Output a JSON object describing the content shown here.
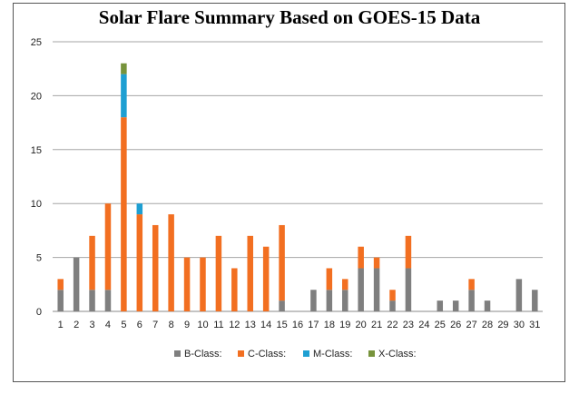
{
  "chart_data": {
    "type": "bar",
    "stacked": true,
    "title": "Solar Flare Summary Based on GOES-15 Data",
    "xlabel": "",
    "ylabel": "",
    "ylim": [
      0,
      25
    ],
    "yticks": [
      0,
      5,
      10,
      15,
      20,
      25
    ],
    "grid": true,
    "legend": "bottom",
    "categories": [
      "1",
      "2",
      "3",
      "4",
      "5",
      "6",
      "7",
      "8",
      "9",
      "10",
      "11",
      "12",
      "13",
      "14",
      "15",
      "16",
      "17",
      "18",
      "19",
      "20",
      "21",
      "22",
      "23",
      "24",
      "25",
      "26",
      "27",
      "28",
      "29",
      "30",
      "31"
    ],
    "series": [
      {
        "name": "B-Class:",
        "color": "#7f7f7f",
        "values": [
          2,
          5,
          2,
          2,
          0,
          0,
          0,
          0,
          0,
          0,
          0,
          0,
          0,
          0,
          1,
          0,
          2,
          2,
          2,
          4,
          4,
          1,
          4,
          0,
          1,
          1,
          2,
          1,
          0,
          3,
          2
        ]
      },
      {
        "name": "C-Class:",
        "color": "#f26f21",
        "values": [
          1,
          0,
          5,
          8,
          18,
          9,
          8,
          9,
          5,
          5,
          7,
          4,
          7,
          6,
          7,
          0,
          0,
          2,
          1,
          2,
          1,
          1,
          3,
          0,
          0,
          0,
          1,
          0,
          0,
          0,
          0
        ]
      },
      {
        "name": "M-Class:",
        "color": "#1e9fd2",
        "values": [
          0,
          0,
          0,
          0,
          4,
          1,
          0,
          0,
          0,
          0,
          0,
          0,
          0,
          0,
          0,
          0,
          0,
          0,
          0,
          0,
          0,
          0,
          0,
          0,
          0,
          0,
          0,
          0,
          0,
          0,
          0
        ]
      },
      {
        "name": "X-Class:",
        "color": "#77933c",
        "values": [
          0,
          0,
          0,
          0,
          1,
          0,
          0,
          0,
          0,
          0,
          0,
          0,
          0,
          0,
          0,
          0,
          0,
          0,
          0,
          0,
          0,
          0,
          0,
          0,
          0,
          0,
          0,
          0,
          0,
          0,
          0
        ]
      }
    ]
  }
}
